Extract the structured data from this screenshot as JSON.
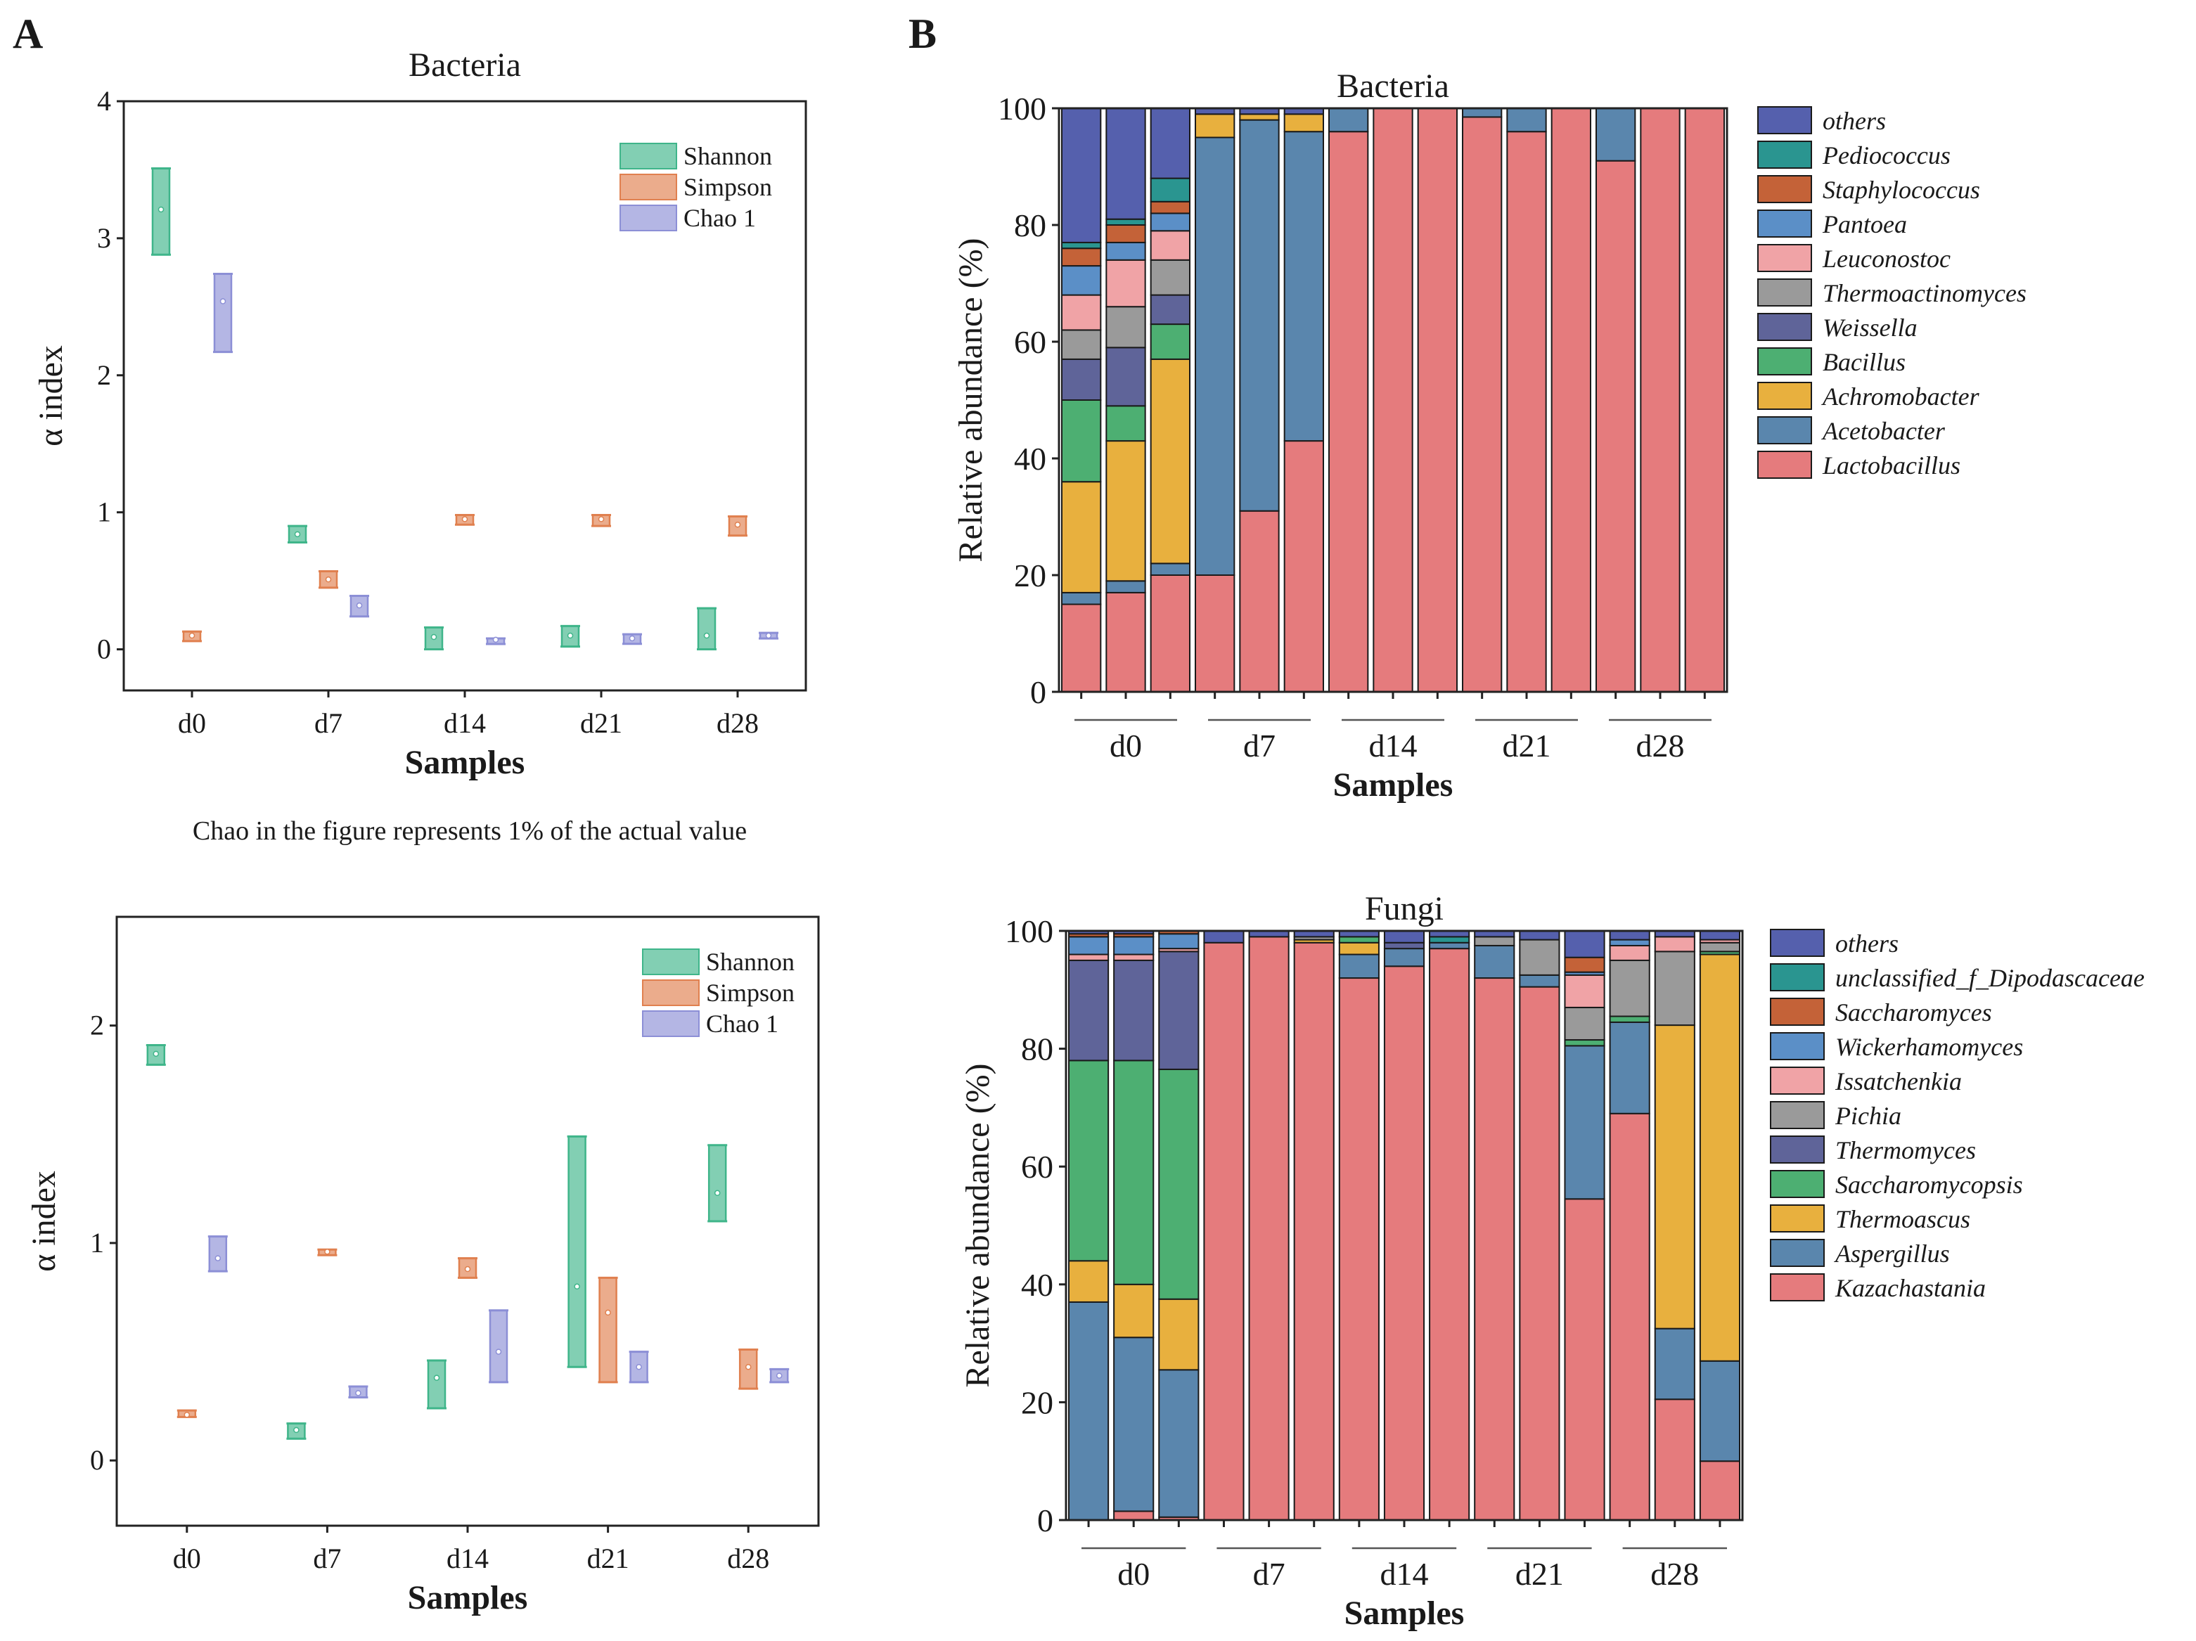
{
  "panels": {
    "a_label": "A",
    "b_label": "B",
    "note": "Chao in the figure represents 1% of the actual value"
  },
  "chart_data": [
    {
      "id": "alpha_bacteria",
      "type": "box",
      "title": "Bacteria",
      "xlabel": "Samples",
      "ylabel": "α index",
      "ylim": [
        -0.3,
        4
      ],
      "yticks": [
        0,
        1,
        2,
        3,
        4
      ],
      "categories": [
        "d0",
        "d7",
        "d14",
        "d21",
        "d28"
      ],
      "legend": [
        "Shannon",
        "Simpson",
        "Chao 1"
      ],
      "colors": [
        "#3fb58a",
        "#e0804f",
        "#8c8fd6"
      ],
      "series": [
        {
          "name": "Shannon",
          "values": [
            [
              2.88,
              3.21,
              3.51
            ],
            [
              0.78,
              0.84,
              0.9
            ],
            [
              0.0,
              0.09,
              0.16
            ],
            [
              0.02,
              0.1,
              0.17
            ],
            [
              0.0,
              0.1,
              0.3
            ]
          ]
        },
        {
          "name": "Simpson",
          "values": [
            [
              0.06,
              0.1,
              0.13
            ],
            [
              0.45,
              0.51,
              0.57
            ],
            [
              0.91,
              0.95,
              0.98
            ],
            [
              0.9,
              0.95,
              0.98
            ],
            [
              0.83,
              0.91,
              0.97
            ]
          ]
        },
        {
          "name": "Chao 1",
          "values": [
            [
              2.17,
              2.54,
              2.74
            ],
            [
              0.24,
              0.32,
              0.39
            ],
            [
              0.05,
              0.07,
              0.08
            ],
            [
              0.04,
              0.08,
              0.11
            ],
            [
              0.08,
              0.1,
              0.12
            ]
          ]
        }
      ]
    },
    {
      "id": "alpha_fungi",
      "type": "box",
      "title": "",
      "xlabel": "Samples",
      "ylabel": "α index",
      "ylim": [
        -0.3,
        2.5
      ],
      "yticks": [
        0,
        1,
        2
      ],
      "categories": [
        "d0",
        "d7",
        "d14",
        "d21",
        "d28"
      ],
      "legend": [
        "Shannon",
        "Simpson",
        "Chao 1"
      ],
      "colors": [
        "#3fb58a",
        "#e0804f",
        "#8c8fd6"
      ],
      "series": [
        {
          "name": "Shannon",
          "values": [
            [
              1.82,
              1.87,
              1.91
            ],
            [
              0.1,
              0.14,
              0.17
            ],
            [
              0.24,
              0.38,
              0.46
            ],
            [
              0.43,
              0.8,
              1.49
            ],
            [
              1.1,
              1.23,
              1.45
            ]
          ]
        },
        {
          "name": "Simpson",
          "values": [
            [
              0.2,
              0.21,
              0.23
            ],
            [
              0.95,
              0.96,
              0.97
            ],
            [
              0.84,
              0.88,
              0.93
            ],
            [
              0.36,
              0.68,
              0.84
            ],
            [
              0.33,
              0.43,
              0.51
            ]
          ]
        },
        {
          "name": "Chao 1",
          "values": [
            [
              0.87,
              0.93,
              1.03
            ],
            [
              0.29,
              0.31,
              0.34
            ],
            [
              0.36,
              0.5,
              0.69
            ],
            [
              0.36,
              0.43,
              0.5
            ],
            [
              0.36,
              0.39,
              0.42
            ]
          ]
        }
      ]
    },
    {
      "id": "composition_bacteria",
      "type": "stacked-bar",
      "title": "Bacteria",
      "xlabel": "Samples",
      "ylabel": "Relative abundance (%)",
      "ylim": [
        0,
        100
      ],
      "yticks": [
        0,
        20,
        40,
        60,
        80,
        100
      ],
      "groups": [
        "d0",
        "d7",
        "d14",
        "d21",
        "d28"
      ],
      "samples_per_group": 3,
      "taxa": [
        "Lactobacillus",
        "Acetobacter",
        "Achromobacter",
        "Bacillus",
        "Weissella",
        "Thermoactinomyces",
        "Leuconostoc",
        "Pantoea",
        "Staphylococcus",
        "Pediococcus",
        "others"
      ],
      "colors": [
        "#e57b7d",
        "#5a86ad",
        "#e8b03e",
        "#4daf72",
        "#5f6499",
        "#9a9a9a",
        "#f0a3a6",
        "#5b8fc7",
        "#c46238",
        "#2a9590",
        "#5560ad"
      ],
      "values": [
        [
          15,
          2,
          19,
          14,
          7,
          5,
          6,
          5,
          3,
          1,
          23
        ],
        [
          17,
          2,
          24,
          6,
          10,
          7,
          8,
          3,
          3,
          1,
          19
        ],
        [
          20,
          2,
          35,
          6,
          5,
          6,
          5,
          3,
          2,
          4,
          12
        ],
        [
          20,
          75,
          4,
          0,
          0,
          0,
          0,
          0,
          0,
          0,
          1
        ],
        [
          31,
          67,
          1,
          0,
          0,
          0,
          0,
          0,
          0,
          0,
          1
        ],
        [
          43,
          53,
          3,
          0,
          0,
          0,
          0,
          0,
          0,
          0,
          1
        ],
        [
          96,
          4,
          0,
          0,
          0,
          0,
          0,
          0,
          0,
          0,
          0
        ],
        [
          100,
          0,
          0,
          0,
          0,
          0,
          0,
          0,
          0,
          0,
          0
        ],
        [
          100,
          0,
          0,
          0,
          0,
          0,
          0,
          0,
          0,
          0,
          0
        ],
        [
          98.5,
          1.5,
          0,
          0,
          0,
          0,
          0,
          0,
          0,
          0,
          0
        ],
        [
          96,
          4,
          0,
          0,
          0,
          0,
          0,
          0,
          0,
          0,
          0
        ],
        [
          100,
          0,
          0,
          0,
          0,
          0,
          0,
          0,
          0,
          0,
          0
        ],
        [
          91,
          9,
          0,
          0,
          0,
          0,
          0,
          0,
          0,
          0,
          0
        ],
        [
          100,
          0,
          0,
          0,
          0,
          0,
          0,
          0,
          0,
          0,
          0
        ],
        [
          100,
          0,
          0,
          0,
          0,
          0,
          0,
          0,
          0,
          0,
          0
        ]
      ]
    },
    {
      "id": "composition_fungi",
      "type": "stacked-bar",
      "title": "Fungi",
      "xlabel": "Samples",
      "ylabel": "Relative abundance (%)",
      "ylim": [
        0,
        100
      ],
      "yticks": [
        0,
        20,
        40,
        60,
        80,
        100
      ],
      "groups": [
        "d0",
        "d7",
        "d14",
        "d21",
        "d28"
      ],
      "samples_per_group": 3,
      "taxa": [
        "Kazachastania",
        "Aspergillus",
        "Thermoascus",
        "Saccharomycopsis",
        "Thermomyces",
        "Pichia",
        "Issatchenkia",
        "Wickerhamomyces",
        "Saccharomyces",
        "unclassified_f_Dipodascaceae",
        "others"
      ],
      "colors": [
        "#e57b7d",
        "#5a86ad",
        "#e8b03e",
        "#4daf72",
        "#5f6499",
        "#9a9a9a",
        "#f0a3a6",
        "#5b8fc7",
        "#c46238",
        "#2a9590",
        "#5560ad"
      ],
      "values": [
        [
          0,
          37,
          7,
          34,
          17,
          0,
          1,
          3,
          0.5,
          0,
          0.5
        ],
        [
          1.5,
          29.5,
          9,
          38,
          17,
          0,
          1,
          3,
          0.5,
          0,
          0.5
        ],
        [
          0.5,
          25,
          12,
          39,
          20,
          0,
          0.5,
          2.5,
          0.5,
          0,
          0
        ],
        [
          98,
          0,
          0,
          0,
          0,
          0,
          0,
          0,
          0,
          0,
          2
        ],
        [
          99,
          0,
          0,
          0,
          0,
          0,
          0,
          0,
          0,
          0,
          1
        ],
        [
          98,
          0,
          0.5,
          0,
          0,
          0.5,
          0,
          0,
          0,
          0,
          1
        ],
        [
          92,
          4,
          2,
          1,
          0,
          0,
          0,
          0,
          0,
          0,
          1
        ],
        [
          94,
          3,
          0,
          0,
          1,
          0,
          0,
          0,
          0,
          0,
          2
        ],
        [
          97,
          1,
          0,
          0,
          0,
          0,
          0,
          0,
          0,
          1,
          1
        ],
        [
          92,
          5.5,
          0,
          0,
          0,
          1.5,
          0,
          0,
          0,
          0,
          1
        ],
        [
          90.5,
          2,
          0,
          0,
          0,
          6,
          0,
          0,
          0,
          0,
          1.5
        ],
        [
          54.5,
          26,
          0,
          1,
          0,
          5.5,
          5.5,
          0.5,
          2.5,
          0,
          4.5
        ],
        [
          69,
          15.5,
          0,
          1,
          0,
          9.5,
          2.5,
          1,
          0,
          0,
          1.5
        ],
        [
          20.5,
          12,
          51.5,
          0,
          0,
          12.5,
          2.5,
          0,
          0,
          0,
          1
        ],
        [
          10,
          17,
          69,
          0.5,
          0,
          1.5,
          0.5,
          0,
          0,
          0,
          1.5
        ]
      ]
    }
  ]
}
